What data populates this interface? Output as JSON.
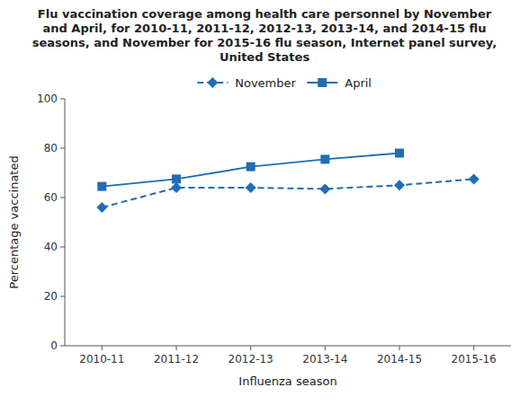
{
  "chart_data": {
    "type": "line",
    "title": "Flu vaccination coverage among health care personnel by November\nand April, for 2010-11, 2011-12, 2012-13, 2013-14, and 2014-15 flu\nseasons, and November for 2015-16 flu season, Internet panel survey,\nUnited States",
    "xlabel": "Influenza season",
    "ylabel": "Percentage vaccinated",
    "categories": [
      "2010-11",
      "2011-12",
      "2012-13",
      "2013-14",
      "2014-15",
      "2015-16"
    ],
    "series": [
      {
        "name": "November",
        "color": "#1f6db5",
        "marker": "diamond",
        "line_style": "dashed",
        "values": [
          56.0,
          64.0,
          64.0,
          63.5,
          65.0,
          67.5
        ]
      },
      {
        "name": "April",
        "color": "#1f6db5",
        "marker": "square",
        "line_style": "solid",
        "values": [
          64.5,
          67.5,
          72.5,
          75.5,
          78.0,
          null
        ]
      }
    ],
    "ylim": [
      0,
      100
    ],
    "yticks": [
      0,
      20,
      40,
      60,
      80,
      100
    ],
    "grid": false,
    "legend": "top"
  }
}
